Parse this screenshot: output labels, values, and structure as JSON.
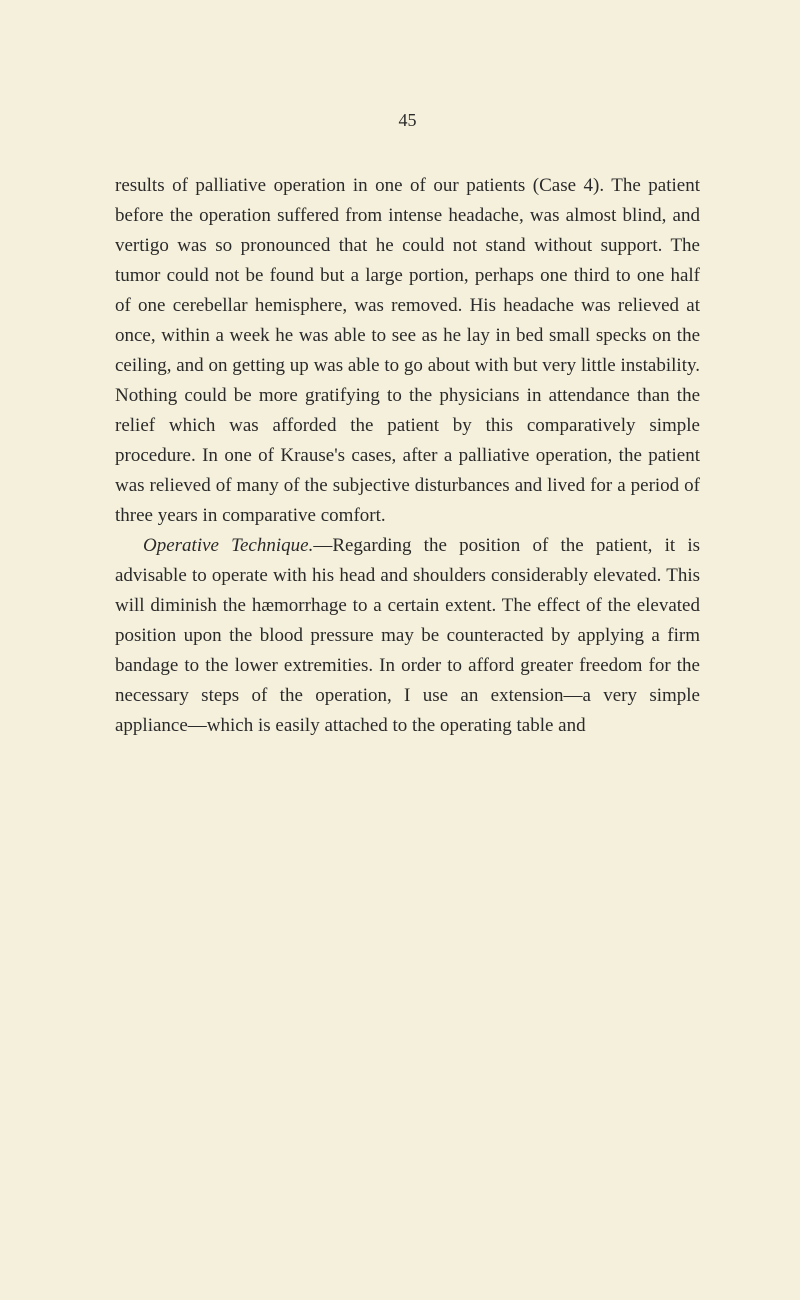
{
  "page_number": "45",
  "paragraphs": [
    {
      "indent": false,
      "text": "results of palliative operation in one of our patients (Case 4). The patient before the operation suffered from intense headache, was almost blind, and vertigo was so pronounced that he could not stand without support. The tumor could not be found but a large portion, perhaps one third to one half of one cerebellar hemisphere, was removed. His headache was relieved at once, within a week he was able to see as he lay in bed small specks on the ceiling, and on getting up was able to go about with but very little instability. Nothing could be more gratifying to the physicians in attendance than the relief which was afforded the patient by this comparatively simple procedure. In one of Krause's cases, after a palliative operation, the patient was relieved of many of the subjective disturbances and lived for a period of three years in comparative comfort."
    },
    {
      "indent": true,
      "lead_italic": "Operative Technique.",
      "text": "—Regarding the position of the patient, it is advisable to operate with his head and shoulders considerably elevated. This will diminish the hæmorrhage to a certain extent. The effect of the elevated position upon the blood pressure may be counteracted by applying a firm bandage to the lower extremities. In order to afford greater freedom for the necessary steps of the operation, I use an extension—a very simple appliance—which is easily attached to the operating table and"
    }
  ],
  "colors": {
    "background": "#f5f0db",
    "text": "#2a2a2a"
  },
  "typography": {
    "body_fontsize": 19,
    "page_number_fontsize": 18,
    "line_height": 1.58,
    "font_family": "Georgia, Times New Roman, serif"
  }
}
